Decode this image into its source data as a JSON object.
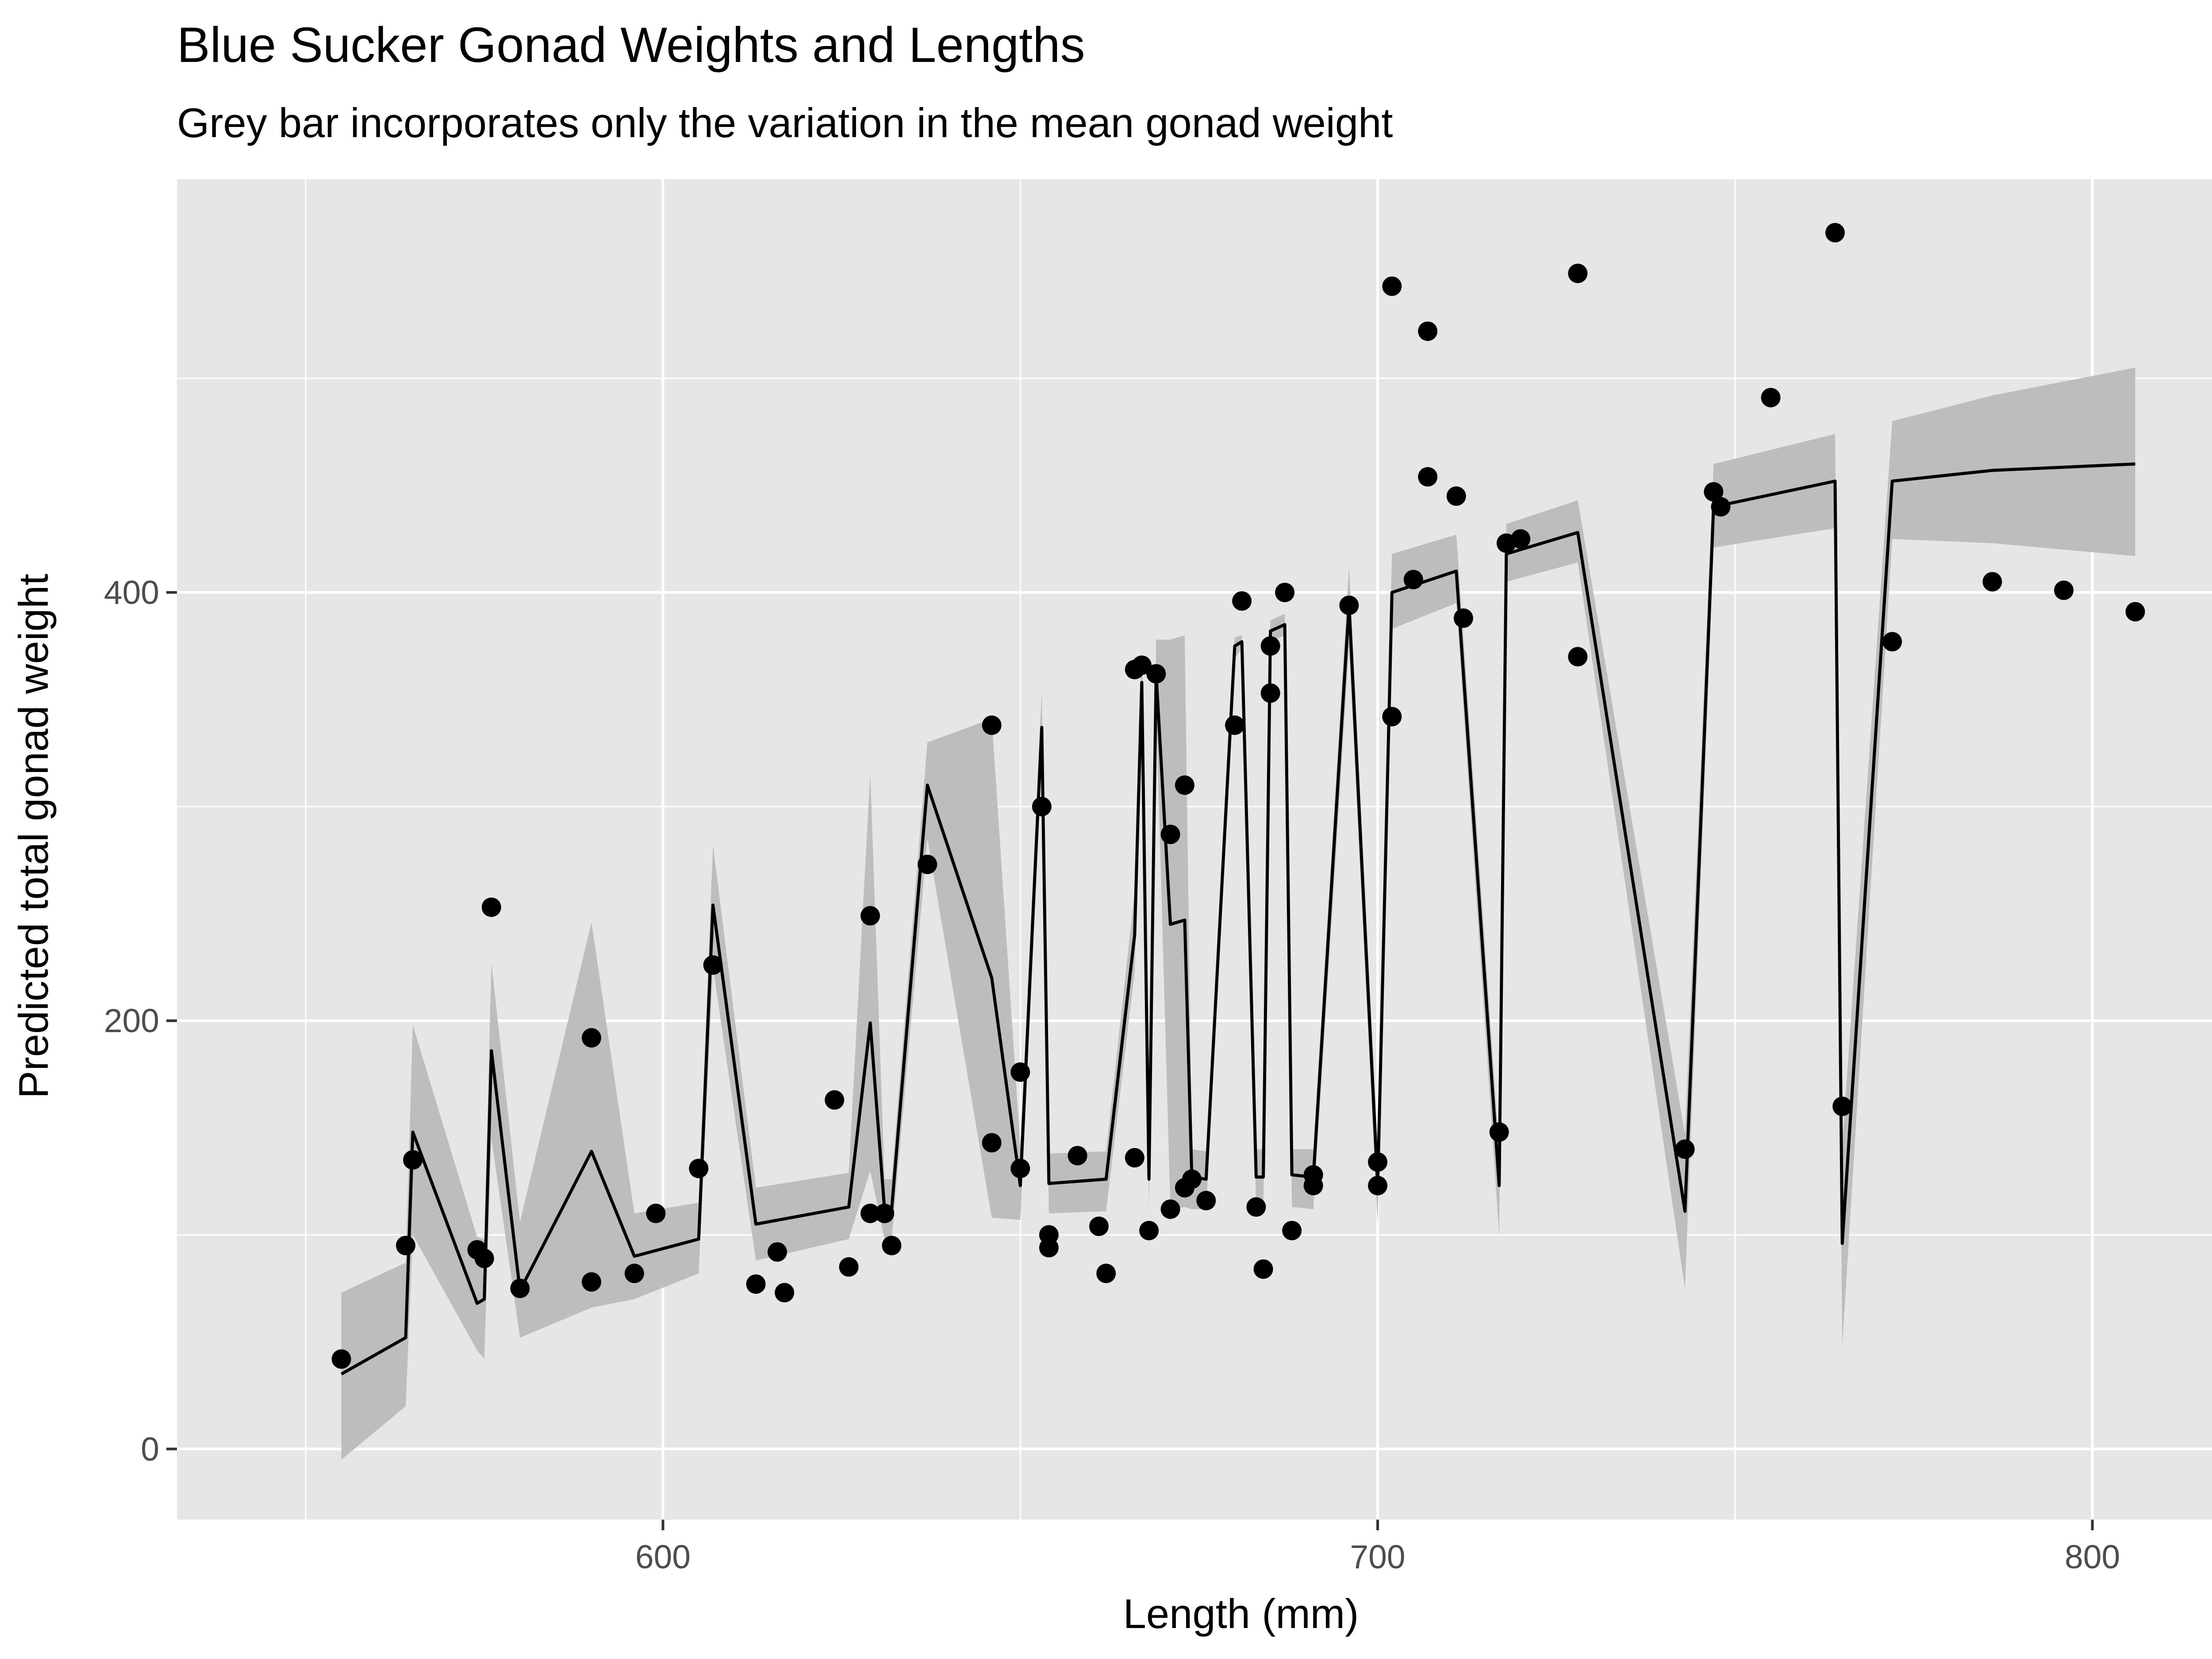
{
  "chart_data": {
    "type": "scatter",
    "title": "Blue Sucker Gonad Weights and Lengths",
    "subtitle": "Grey bar incorporates only the variation in the mean gonad weight",
    "xlabel": "Length (mm)",
    "ylabel": "Predicted total gonad weight",
    "xlim": [
      532,
      822
    ],
    "ylim": [
      -33,
      593
    ],
    "x_ticks": [
      600,
      700,
      800
    ],
    "y_ticks": [
      0,
      200,
      400
    ],
    "x_tick_labels": [
      "600",
      "700",
      "800"
    ],
    "y_tick_labels": [
      "0",
      "200",
      "400"
    ],
    "grid": true,
    "panel_color": "#E6E6E6",
    "grid_color": "#FFFFFF",
    "band_color": "#BDBDBD",
    "point_color": "#000000",
    "line_color": "#000000",
    "series": [
      {
        "type": "scatter",
        "points": [
          [
            555,
            42
          ],
          [
            564,
            95
          ],
          [
            565,
            135
          ],
          [
            574,
            93
          ],
          [
            575,
            89
          ],
          [
            576,
            253
          ],
          [
            580,
            75
          ],
          [
            590,
            192
          ],
          [
            590,
            78
          ],
          [
            596,
            82
          ],
          [
            599,
            110
          ],
          [
            605,
            131
          ],
          [
            607,
            226
          ],
          [
            613,
            77
          ],
          [
            616,
            92
          ],
          [
            617,
            73
          ],
          [
            624,
            163
          ],
          [
            626,
            85
          ],
          [
            629,
            249
          ],
          [
            629,
            110
          ],
          [
            631,
            110
          ],
          [
            632,
            95
          ],
          [
            637,
            273
          ],
          [
            646,
            338
          ],
          [
            646,
            143
          ],
          [
            650,
            176
          ],
          [
            650,
            131
          ],
          [
            653,
            300
          ],
          [
            654,
            100
          ],
          [
            654,
            94
          ],
          [
            658,
            137
          ],
          [
            661,
            104
          ],
          [
            662,
            82
          ],
          [
            666,
            364
          ],
          [
            666,
            136
          ],
          [
            667,
            366
          ],
          [
            668,
            102
          ],
          [
            669,
            362
          ],
          [
            671,
            112
          ],
          [
            671,
            287
          ],
          [
            673,
            310
          ],
          [
            673,
            122
          ],
          [
            674,
            126
          ],
          [
            676,
            116
          ],
          [
            680,
            338
          ],
          [
            681,
            396
          ],
          [
            683,
            113
          ],
          [
            684,
            84
          ],
          [
            685,
            353
          ],
          [
            685,
            375
          ],
          [
            687,
            400
          ],
          [
            688,
            102
          ],
          [
            691,
            123
          ],
          [
            691,
            128
          ],
          [
            696,
            394
          ],
          [
            700,
            134
          ],
          [
            700,
            123
          ],
          [
            702,
            342
          ],
          [
            702,
            543
          ],
          [
            705,
            406
          ],
          [
            707,
            522
          ],
          [
            707,
            454
          ],
          [
            711,
            445
          ],
          [
            712,
            388
          ],
          [
            717,
            148
          ],
          [
            718,
            423
          ],
          [
            720,
            425
          ],
          [
            728,
            370
          ],
          [
            728,
            549
          ],
          [
            743,
            140
          ],
          [
            747,
            447
          ],
          [
            748,
            440
          ],
          [
            755,
            491
          ],
          [
            764,
            568
          ],
          [
            765,
            160
          ],
          [
            772,
            377
          ],
          [
            786,
            405
          ],
          [
            796,
            401
          ],
          [
            806,
            391
          ]
        ]
      },
      {
        "type": "line",
        "points": [
          [
            555,
            35
          ],
          [
            564,
            52
          ],
          [
            565,
            148
          ],
          [
            574,
            68
          ],
          [
            575,
            70
          ],
          [
            576,
            186
          ],
          [
            580,
            74
          ],
          [
            590,
            139
          ],
          [
            596,
            90
          ],
          [
            605,
            98
          ],
          [
            607,
            254
          ],
          [
            613,
            105
          ],
          [
            626,
            113
          ],
          [
            629,
            199
          ],
          [
            631,
            112
          ],
          [
            632,
            112
          ],
          [
            637,
            310
          ],
          [
            646,
            220
          ],
          [
            650,
            123
          ],
          [
            653,
            337
          ],
          [
            654,
            124
          ],
          [
            662,
            126
          ],
          [
            666,
            240
          ],
          [
            667,
            358
          ],
          [
            668,
            126
          ],
          [
            669,
            362
          ],
          [
            671,
            245
          ],
          [
            673,
            247
          ],
          [
            674,
            127
          ],
          [
            676,
            126
          ],
          [
            680,
            375
          ],
          [
            681,
            377
          ],
          [
            683,
            127
          ],
          [
            684,
            127
          ],
          [
            685,
            382
          ],
          [
            687,
            385
          ],
          [
            688,
            128
          ],
          [
            691,
            127
          ],
          [
            696,
            394
          ],
          [
            700,
            123
          ],
          [
            702,
            400
          ],
          [
            711,
            410
          ],
          [
            717,
            123
          ],
          [
            718,
            418
          ],
          [
            728,
            428
          ],
          [
            743,
            111
          ],
          [
            747,
            440
          ],
          [
            764,
            452
          ],
          [
            765,
            96
          ],
          [
            772,
            452
          ],
          [
            786,
            457
          ],
          [
            806,
            460
          ]
        ]
      },
      {
        "type": "area",
        "upper": [
          [
            555,
            73
          ],
          [
            564,
            87
          ],
          [
            565,
            198
          ],
          [
            574,
            99
          ],
          [
            575,
            98
          ],
          [
            576,
            227
          ],
          [
            580,
            106
          ],
          [
            590,
            246
          ],
          [
            596,
            110
          ],
          [
            605,
            115
          ],
          [
            607,
            282
          ],
          [
            613,
            122
          ],
          [
            626,
            129
          ],
          [
            629,
            316
          ],
          [
            631,
            126
          ],
          [
            632,
            126
          ],
          [
            637,
            330
          ],
          [
            646,
            341
          ],
          [
            650,
            141
          ],
          [
            653,
            354
          ],
          [
            654,
            138
          ],
          [
            662,
            139
          ],
          [
            666,
            260
          ],
          [
            667,
            375
          ],
          [
            668,
            140
          ],
          [
            669,
            378
          ],
          [
            671,
            378
          ],
          [
            673,
            380
          ],
          [
            674,
            140
          ],
          [
            676,
            139
          ],
          [
            680,
            379
          ],
          [
            681,
            380
          ],
          [
            683,
            140
          ],
          [
            684,
            140
          ],
          [
            685,
            387
          ],
          [
            687,
            390
          ],
          [
            688,
            140
          ],
          [
            691,
            140
          ],
          [
            696,
            412
          ],
          [
            700,
            141
          ],
          [
            702,
            418
          ],
          [
            711,
            427
          ],
          [
            717,
            140
          ],
          [
            718,
            432
          ],
          [
            728,
            443
          ],
          [
            743,
            147
          ],
          [
            747,
            460
          ],
          [
            764,
            474
          ],
          [
            765,
            142
          ],
          [
            772,
            480
          ],
          [
            786,
            492
          ],
          [
            806,
            505
          ]
        ],
        "lower": [
          [
            555,
            -5
          ],
          [
            564,
            20
          ],
          [
            565,
            100
          ],
          [
            574,
            46
          ],
          [
            575,
            42
          ],
          [
            576,
            145
          ],
          [
            580,
            52
          ],
          [
            590,
            66
          ],
          [
            596,
            70
          ],
          [
            605,
            82
          ],
          [
            607,
            225
          ],
          [
            613,
            88
          ],
          [
            626,
            98
          ],
          [
            629,
            130
          ],
          [
            631,
            98
          ],
          [
            632,
            98
          ],
          [
            637,
            285
          ],
          [
            646,
            108
          ],
          [
            650,
            107
          ],
          [
            653,
            320
          ],
          [
            654,
            110
          ],
          [
            662,
            111
          ],
          [
            666,
            223
          ],
          [
            667,
            340
          ],
          [
            668,
            112
          ],
          [
            669,
            347
          ],
          [
            671,
            112
          ],
          [
            673,
            113
          ],
          [
            674,
            112
          ],
          [
            676,
            112
          ],
          [
            680,
            369
          ],
          [
            681,
            374
          ],
          [
            683,
            113
          ],
          [
            684,
            113
          ],
          [
            685,
            377
          ],
          [
            687,
            380
          ],
          [
            688,
            113
          ],
          [
            691,
            112
          ],
          [
            696,
            375
          ],
          [
            700,
            105
          ],
          [
            702,
            383
          ],
          [
            711,
            395
          ],
          [
            717,
            100
          ],
          [
            718,
            405
          ],
          [
            728,
            414
          ],
          [
            743,
            75
          ],
          [
            747,
            421
          ],
          [
            764,
            430
          ],
          [
            765,
            48
          ],
          [
            772,
            425
          ],
          [
            786,
            423
          ],
          [
            806,
            417
          ]
        ]
      }
    ]
  }
}
